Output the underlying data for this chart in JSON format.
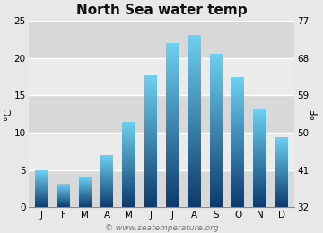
{
  "title": "North Sea water temp",
  "months": [
    "J",
    "F",
    "M",
    "A",
    "M",
    "J",
    "J",
    "A",
    "S",
    "O",
    "N",
    "D"
  ],
  "values_c": [
    4.9,
    3.1,
    4.1,
    7.0,
    11.5,
    17.7,
    22.0,
    23.1,
    20.6,
    17.4,
    13.1,
    9.4
  ],
  "ylim_c": [
    0,
    25
  ],
  "yticks_c": [
    0,
    5,
    10,
    15,
    20,
    25
  ],
  "yticks_f": [
    32,
    41,
    50,
    59,
    68,
    77
  ],
  "ylabel_left": "°C",
  "ylabel_right": "°F",
  "bar_color_top": "#6dcff0",
  "bar_color_bottom": "#0d3b6e",
  "background_color": "#e8e8e8",
  "plot_bg_light": "#ebebeb",
  "plot_bg_dark": "#d8d8d8",
  "title_fontsize": 11,
  "tick_fontsize": 7.5,
  "label_fontsize": 8,
  "watermark": "© www.seatemperature.org",
  "watermark_fontsize": 6.5,
  "bar_width": 0.6
}
